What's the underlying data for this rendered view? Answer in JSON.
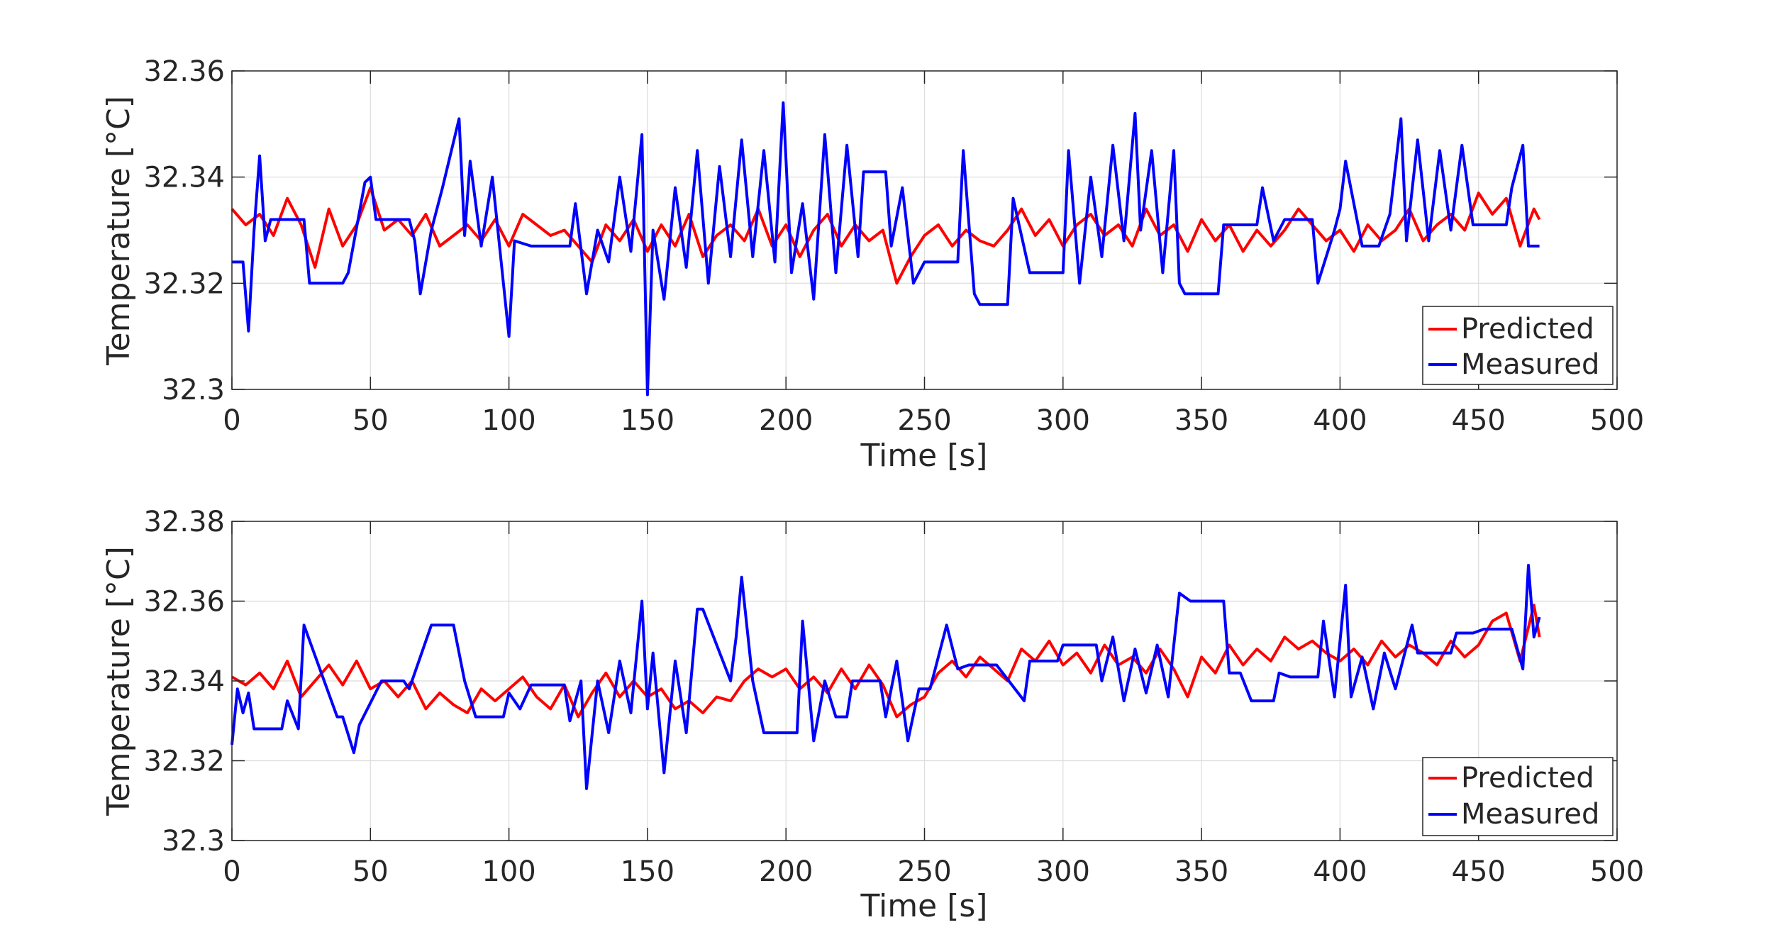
{
  "colors": {
    "predicted": "#ff0000",
    "measured": "#0000ff",
    "grid": "#dcdcdc",
    "axis": "#262626",
    "background": "#ffffff"
  },
  "chart_data": [
    {
      "type": "line",
      "title": "",
      "xlabel": "Time [s]",
      "ylabel": "Temperature [°C]",
      "xlim": [
        0,
        500
      ],
      "ylim": [
        32.3,
        32.36
      ],
      "xticks": [
        0,
        50,
        100,
        150,
        200,
        250,
        300,
        350,
        400,
        450,
        500
      ],
      "xtick_labels": [
        "0",
        "50",
        "100",
        "150",
        "200",
        "250",
        "300",
        "350",
        "400",
        "450",
        "500"
      ],
      "yticks": [
        32.3,
        32.32,
        32.34,
        32.36
      ],
      "ytick_labels": [
        "32.3",
        "32.32",
        "32.34",
        "32.36"
      ],
      "grid": true,
      "legend_position": "bottom-right",
      "series": [
        {
          "name": "Predicted",
          "color": "#ff0000",
          "x": [
            0,
            5,
            10,
            15,
            20,
            25,
            30,
            35,
            40,
            45,
            50,
            55,
            60,
            65,
            70,
            75,
            80,
            85,
            90,
            95,
            100,
            105,
            110,
            115,
            120,
            125,
            130,
            135,
            140,
            145,
            150,
            155,
            160,
            165,
            170,
            175,
            180,
            185,
            190,
            195,
            200,
            205,
            210,
            215,
            220,
            225,
            230,
            235,
            240,
            245,
            250,
            255,
            260,
            265,
            270,
            275,
            280,
            285,
            290,
            295,
            300,
            305,
            310,
            315,
            320,
            325,
            330,
            335,
            340,
            345,
            350,
            355,
            360,
            365,
            370,
            375,
            380,
            385,
            390,
            395,
            400,
            405,
            410,
            415,
            420,
            425,
            430,
            435,
            440,
            445,
            450,
            455,
            460,
            465,
            470,
            472
          ],
          "values": [
            32.334,
            32.331,
            32.333,
            32.329,
            32.336,
            32.331,
            32.323,
            32.334,
            32.327,
            32.331,
            32.338,
            32.33,
            32.332,
            32.329,
            32.333,
            32.327,
            32.329,
            32.331,
            32.328,
            32.332,
            32.327,
            32.333,
            32.331,
            32.329,
            32.33,
            32.327,
            32.324,
            32.331,
            32.328,
            32.332,
            32.326,
            32.331,
            32.327,
            32.333,
            32.325,
            32.329,
            32.331,
            32.328,
            32.334,
            32.327,
            32.331,
            32.325,
            32.33,
            32.333,
            32.327,
            32.331,
            32.328,
            32.33,
            32.32,
            32.325,
            32.329,
            32.331,
            32.327,
            32.33,
            32.328,
            32.327,
            32.33,
            32.334,
            32.329,
            32.332,
            32.327,
            32.331,
            32.333,
            32.329,
            32.331,
            32.327,
            32.334,
            32.329,
            32.331,
            32.326,
            32.332,
            32.328,
            32.331,
            32.326,
            32.33,
            32.327,
            32.33,
            32.334,
            32.331,
            32.328,
            32.33,
            32.326,
            32.331,
            32.328,
            32.33,
            32.334,
            32.328,
            32.331,
            32.333,
            32.33,
            32.337,
            32.333,
            32.336,
            32.327,
            32.334,
            32.332
          ]
        },
        {
          "name": "Measured",
          "color": "#0000ff",
          "x": [
            0,
            4,
            6,
            8,
            10,
            12,
            14,
            26,
            28,
            40,
            42,
            48,
            50,
            52,
            54,
            64,
            66,
            68,
            72,
            76,
            82,
            84,
            86,
            90,
            94,
            100,
            102,
            108,
            110,
            122,
            124,
            128,
            132,
            136,
            140,
            144,
            148,
            150,
            152,
            156,
            160,
            164,
            168,
            172,
            176,
            180,
            184,
            188,
            192,
            196,
            199,
            202,
            206,
            210,
            214,
            218,
            222,
            226,
            228,
            236,
            238,
            242,
            246,
            250,
            252,
            262,
            264,
            268,
            270,
            280,
            282,
            288,
            290,
            300,
            302,
            306,
            310,
            314,
            318,
            322,
            326,
            328,
            332,
            336,
            340,
            342,
            344,
            348,
            356,
            358,
            362,
            370,
            372,
            376,
            380,
            382,
            390,
            392,
            398,
            400,
            402,
            408,
            410,
            412,
            414,
            418,
            422,
            424,
            428,
            432,
            436,
            440,
            444,
            448,
            450,
            458,
            460,
            462,
            466,
            468,
            472
          ],
          "values": [
            32.324,
            32.324,
            32.311,
            32.33,
            32.344,
            32.328,
            32.332,
            32.332,
            32.32,
            32.32,
            32.322,
            32.339,
            32.34,
            32.332,
            32.332,
            32.332,
            32.328,
            32.318,
            32.33,
            32.338,
            32.351,
            32.329,
            32.343,
            32.327,
            32.34,
            32.31,
            32.328,
            32.327,
            32.327,
            32.327,
            32.335,
            32.318,
            32.33,
            32.324,
            32.34,
            32.326,
            32.348,
            32.299,
            32.33,
            32.317,
            32.338,
            32.323,
            32.345,
            32.32,
            32.342,
            32.325,
            32.347,
            32.325,
            32.345,
            32.324,
            32.354,
            32.322,
            32.335,
            32.317,
            32.348,
            32.322,
            32.346,
            32.325,
            32.341,
            32.341,
            32.327,
            32.338,
            32.32,
            32.324,
            32.324,
            32.324,
            32.345,
            32.318,
            32.316,
            32.316,
            32.336,
            32.322,
            32.322,
            32.322,
            32.345,
            32.32,
            32.34,
            32.325,
            32.346,
            32.328,
            32.352,
            32.33,
            32.345,
            32.322,
            32.345,
            32.32,
            32.318,
            32.318,
            32.318,
            32.331,
            32.331,
            32.331,
            32.338,
            32.328,
            32.332,
            32.332,
            32.332,
            32.32,
            32.33,
            32.334,
            32.343,
            32.327,
            32.327,
            32.327,
            32.327,
            32.333,
            32.351,
            32.328,
            32.347,
            32.328,
            32.345,
            32.33,
            32.346,
            32.331,
            32.331,
            32.331,
            32.331,
            32.338,
            32.346,
            32.327,
            32.327
          ]
        }
      ]
    },
    {
      "type": "line",
      "title": "",
      "xlabel": "Time [s]",
      "ylabel": "Temperature [°C]",
      "xlim": [
        0,
        500
      ],
      "ylim": [
        32.3,
        32.38
      ],
      "xticks": [
        0,
        50,
        100,
        150,
        200,
        250,
        300,
        350,
        400,
        450,
        500
      ],
      "xtick_labels": [
        "0",
        "50",
        "100",
        "150",
        "200",
        "250",
        "300",
        "350",
        "400",
        "450",
        "500"
      ],
      "yticks": [
        32.3,
        32.32,
        32.34,
        32.36,
        32.38
      ],
      "ytick_labels": [
        "32.3",
        "32.32",
        "32.34",
        "32.36",
        "32.38"
      ],
      "grid": true,
      "legend_position": "bottom-right",
      "series": [
        {
          "name": "Predicted",
          "color": "#ff0000",
          "x": [
            0,
            5,
            10,
            15,
            20,
            25,
            30,
            35,
            40,
            45,
            50,
            55,
            60,
            65,
            70,
            75,
            80,
            85,
            90,
            95,
            100,
            105,
            110,
            115,
            120,
            125,
            130,
            135,
            140,
            145,
            150,
            155,
            160,
            165,
            170,
            175,
            180,
            185,
            190,
            195,
            200,
            205,
            210,
            215,
            220,
            225,
            230,
            235,
            240,
            245,
            250,
            255,
            260,
            265,
            270,
            275,
            280,
            285,
            290,
            295,
            300,
            305,
            310,
            315,
            320,
            325,
            330,
            335,
            340,
            345,
            350,
            355,
            360,
            365,
            370,
            375,
            380,
            385,
            390,
            395,
            400,
            405,
            410,
            415,
            420,
            425,
            430,
            435,
            440,
            445,
            450,
            455,
            460,
            465,
            470,
            472
          ],
          "values": [
            32.341,
            32.339,
            32.342,
            32.338,
            32.345,
            32.336,
            32.34,
            32.344,
            32.339,
            32.345,
            32.338,
            32.34,
            32.336,
            32.34,
            32.333,
            32.337,
            32.334,
            32.332,
            32.338,
            32.335,
            32.338,
            32.341,
            32.336,
            32.333,
            32.339,
            32.331,
            32.337,
            32.342,
            32.336,
            32.34,
            32.336,
            32.338,
            32.333,
            32.335,
            32.332,
            32.336,
            32.335,
            32.34,
            32.343,
            32.341,
            32.343,
            32.338,
            32.341,
            32.337,
            32.343,
            32.338,
            32.344,
            32.339,
            32.331,
            32.334,
            32.336,
            32.342,
            32.345,
            32.341,
            32.346,
            32.343,
            32.34,
            32.348,
            32.345,
            32.35,
            32.344,
            32.347,
            32.342,
            32.349,
            32.344,
            32.346,
            32.342,
            32.348,
            32.343,
            32.336,
            32.346,
            32.342,
            32.349,
            32.344,
            32.348,
            32.345,
            32.351,
            32.348,
            32.35,
            32.347,
            32.345,
            32.348,
            32.344,
            32.35,
            32.346,
            32.349,
            32.347,
            32.344,
            32.35,
            32.346,
            32.349,
            32.355,
            32.357,
            32.345,
            32.359,
            32.351
          ]
        },
        {
          "name": "Measured",
          "color": "#0000ff",
          "x": [
            0,
            2,
            4,
            6,
            8,
            18,
            20,
            24,
            26,
            38,
            40,
            44,
            46,
            54,
            58,
            62,
            64,
            72,
            80,
            84,
            88,
            90,
            98,
            100,
            104,
            108,
            110,
            120,
            122,
            126,
            128,
            132,
            136,
            140,
            144,
            148,
            150,
            152,
            156,
            160,
            164,
            168,
            170,
            180,
            182,
            184,
            188,
            192,
            194,
            204,
            206,
            210,
            214,
            218,
            222,
            224,
            234,
            236,
            240,
            244,
            248,
            250,
            252,
            258,
            262,
            266,
            270,
            276,
            286,
            288,
            292,
            298,
            300,
            302,
            312,
            314,
            318,
            322,
            326,
            330,
            334,
            338,
            342,
            346,
            358,
            360,
            364,
            368,
            376,
            378,
            382,
            392,
            394,
            398,
            402,
            404,
            408,
            412,
            416,
            420,
            426,
            428,
            440,
            442,
            448,
            452,
            458,
            462,
            466,
            468,
            470,
            472
          ],
          "values": [
            32.324,
            32.338,
            32.332,
            32.337,
            32.328,
            32.328,
            32.335,
            32.328,
            32.354,
            32.331,
            32.331,
            32.322,
            32.329,
            32.34,
            32.34,
            32.34,
            32.338,
            32.354,
            32.354,
            32.34,
            32.331,
            32.331,
            32.331,
            32.337,
            32.333,
            32.339,
            32.339,
            32.339,
            32.33,
            32.34,
            32.313,
            32.34,
            32.327,
            32.345,
            32.332,
            32.36,
            32.333,
            32.347,
            32.317,
            32.345,
            32.327,
            32.358,
            32.358,
            32.34,
            32.351,
            32.366,
            32.34,
            32.327,
            32.327,
            32.327,
            32.355,
            32.325,
            32.34,
            32.331,
            32.331,
            32.34,
            32.34,
            32.331,
            32.345,
            32.325,
            32.338,
            32.338,
            32.338,
            32.354,
            32.343,
            32.344,
            32.344,
            32.344,
            32.335,
            32.345,
            32.345,
            32.345,
            32.349,
            32.349,
            32.349,
            32.34,
            32.351,
            32.335,
            32.348,
            32.337,
            32.349,
            32.336,
            32.362,
            32.36,
            32.36,
            32.342,
            32.342,
            32.335,
            32.335,
            32.342,
            32.341,
            32.341,
            32.355,
            32.336,
            32.364,
            32.336,
            32.346,
            32.333,
            32.347,
            32.338,
            32.354,
            32.347,
            32.347,
            32.352,
            32.352,
            32.353,
            32.353,
            32.353,
            32.343,
            32.369,
            32.351,
            32.356
          ]
        }
      ]
    }
  ]
}
